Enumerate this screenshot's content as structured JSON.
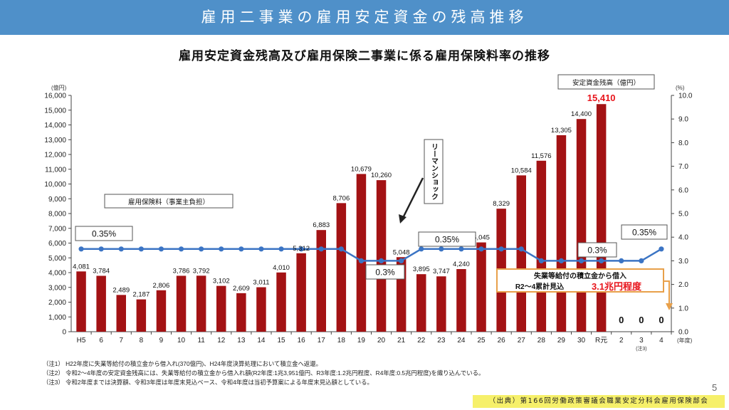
{
  "header": {
    "title": "雇用二事業の雇用安定資金の残高推移"
  },
  "chart_data": {
    "type": "bar",
    "title": "雇用安定資金残高及び雇用保険二事業に係る雇用保険料率の推移",
    "categories": [
      "H5",
      "6",
      "7",
      "8",
      "9",
      "10",
      "11",
      "12",
      "13",
      "14",
      "15",
      "16",
      "17",
      "18",
      "19",
      "20",
      "21",
      "22",
      "23",
      "24",
      "25",
      "26",
      "27",
      "28",
      "29",
      "30",
      "R元",
      "2",
      "3",
      "4"
    ],
    "category_subnote": {
      "category": "3",
      "text": "(注3)"
    },
    "x_unit": "(年度)",
    "y_left_unit": "(億円)",
    "y_right_unit": "(%)",
    "ylim_left": [
      0,
      16000
    ],
    "ylim_right": [
      0,
      10
    ],
    "y_left_ticks": [
      0,
      1000,
      2000,
      3000,
      4000,
      5000,
      6000,
      7000,
      8000,
      9000,
      10000,
      11000,
      12000,
      13000,
      14000,
      15000,
      16000
    ],
    "y_left_tick_labels": [
      "0",
      "1,000",
      "2,000",
      "3,000",
      "4,000",
      "5,000",
      "6,000",
      "7,000",
      "8,000",
      "9,000",
      "10,000",
      "11,000",
      "12,000",
      "13,000",
      "14,000",
      "15,000",
      "16,000"
    ],
    "y_right_ticks": [
      0,
      1,
      2,
      3,
      4,
      5,
      6,
      7,
      8,
      9,
      10
    ],
    "y_right_tick_labels": [
      "0.0",
      "1.0",
      "2.0",
      "3.0",
      "4.0",
      "5.0",
      "6.0",
      "7.0",
      "8.0",
      "9.0",
      "10.0"
    ],
    "series": [
      {
        "name": "安定資金残高（億円）",
        "kind": "bar",
        "color": "#a31214",
        "values": [
          4081,
          3784,
          2489,
          2187,
          2806,
          3786,
          3792,
          3102,
          2609,
          3011,
          4010,
          5312,
          6883,
          8706,
          10679,
          10260,
          5048,
          3895,
          3747,
          4240,
          6045,
          8329,
          10584,
          11576,
          13305,
          14400,
          15410,
          0,
          0,
          0
        ],
        "labels": [
          "4,081",
          "3,784",
          "2,489",
          "2,187",
          "2,806",
          "3,786",
          "3,792",
          "3,102",
          "2,609",
          "3,011",
          "4,010",
          "5,312",
          "6,883",
          "8,706",
          "10,679",
          "10,260",
          "5,048",
          "3,895",
          "3,747",
          "4,240",
          "6,045",
          "8,329",
          "10,584",
          "11,576",
          "13,305",
          "14,400",
          "15,410",
          "0",
          "0",
          "0"
        ],
        "highlight_label_color": "#e8141b"
      },
      {
        "name": "雇用保険料（事業主負担）",
        "kind": "line",
        "axis": "right",
        "color": "#3b74c4",
        "values": [
          3.5,
          3.5,
          3.5,
          3.5,
          3.5,
          3.5,
          3.5,
          3.5,
          3.5,
          3.5,
          3.5,
          3.5,
          3.5,
          3.5,
          3.0,
          3.0,
          3.0,
          3.5,
          3.5,
          3.5,
          3.5,
          3.5,
          3.5,
          3.0,
          3.0,
          3.0,
          3.0,
          3.0,
          3.0,
          3.5
        ]
      }
    ],
    "annotations": {
      "legend_bar": "安定資金残高（億円）",
      "legend_line": "雇用保険料（事業主負担）",
      "rate_labels": [
        "0.35%",
        "0.3%",
        "0.35%",
        "0.3%",
        "0.35%"
      ],
      "lehman": "リーマンショック",
      "loan_line1": "失業等給付の積立金から借入",
      "loan_line2_prefix": "R2～4累計見込",
      "loan_line2_value": "3.1兆円程度"
    }
  },
  "notes": [
    "（注1） H22年度に失業等給付の積立金から借入れ(370億円)、H24年度決算処理において積立金へ返還。",
    "（注2） 令和2～4年度の安定資金残高には、失業等給付の積立金から借入れ額(R2年度:1兆3,951億円、R3年度:1.2兆円程度、R4年度:0.5兆円程度)を織り込んでいる。",
    "（注3） 令和2年度までは決算額、令和3年度は年度末見込ベース、令和4年度は当初予算案による年度末見込額としている。"
  ],
  "source": "（出典）第166回労働政策審議会職業安定分科会雇用保険部会",
  "page_number": "5"
}
